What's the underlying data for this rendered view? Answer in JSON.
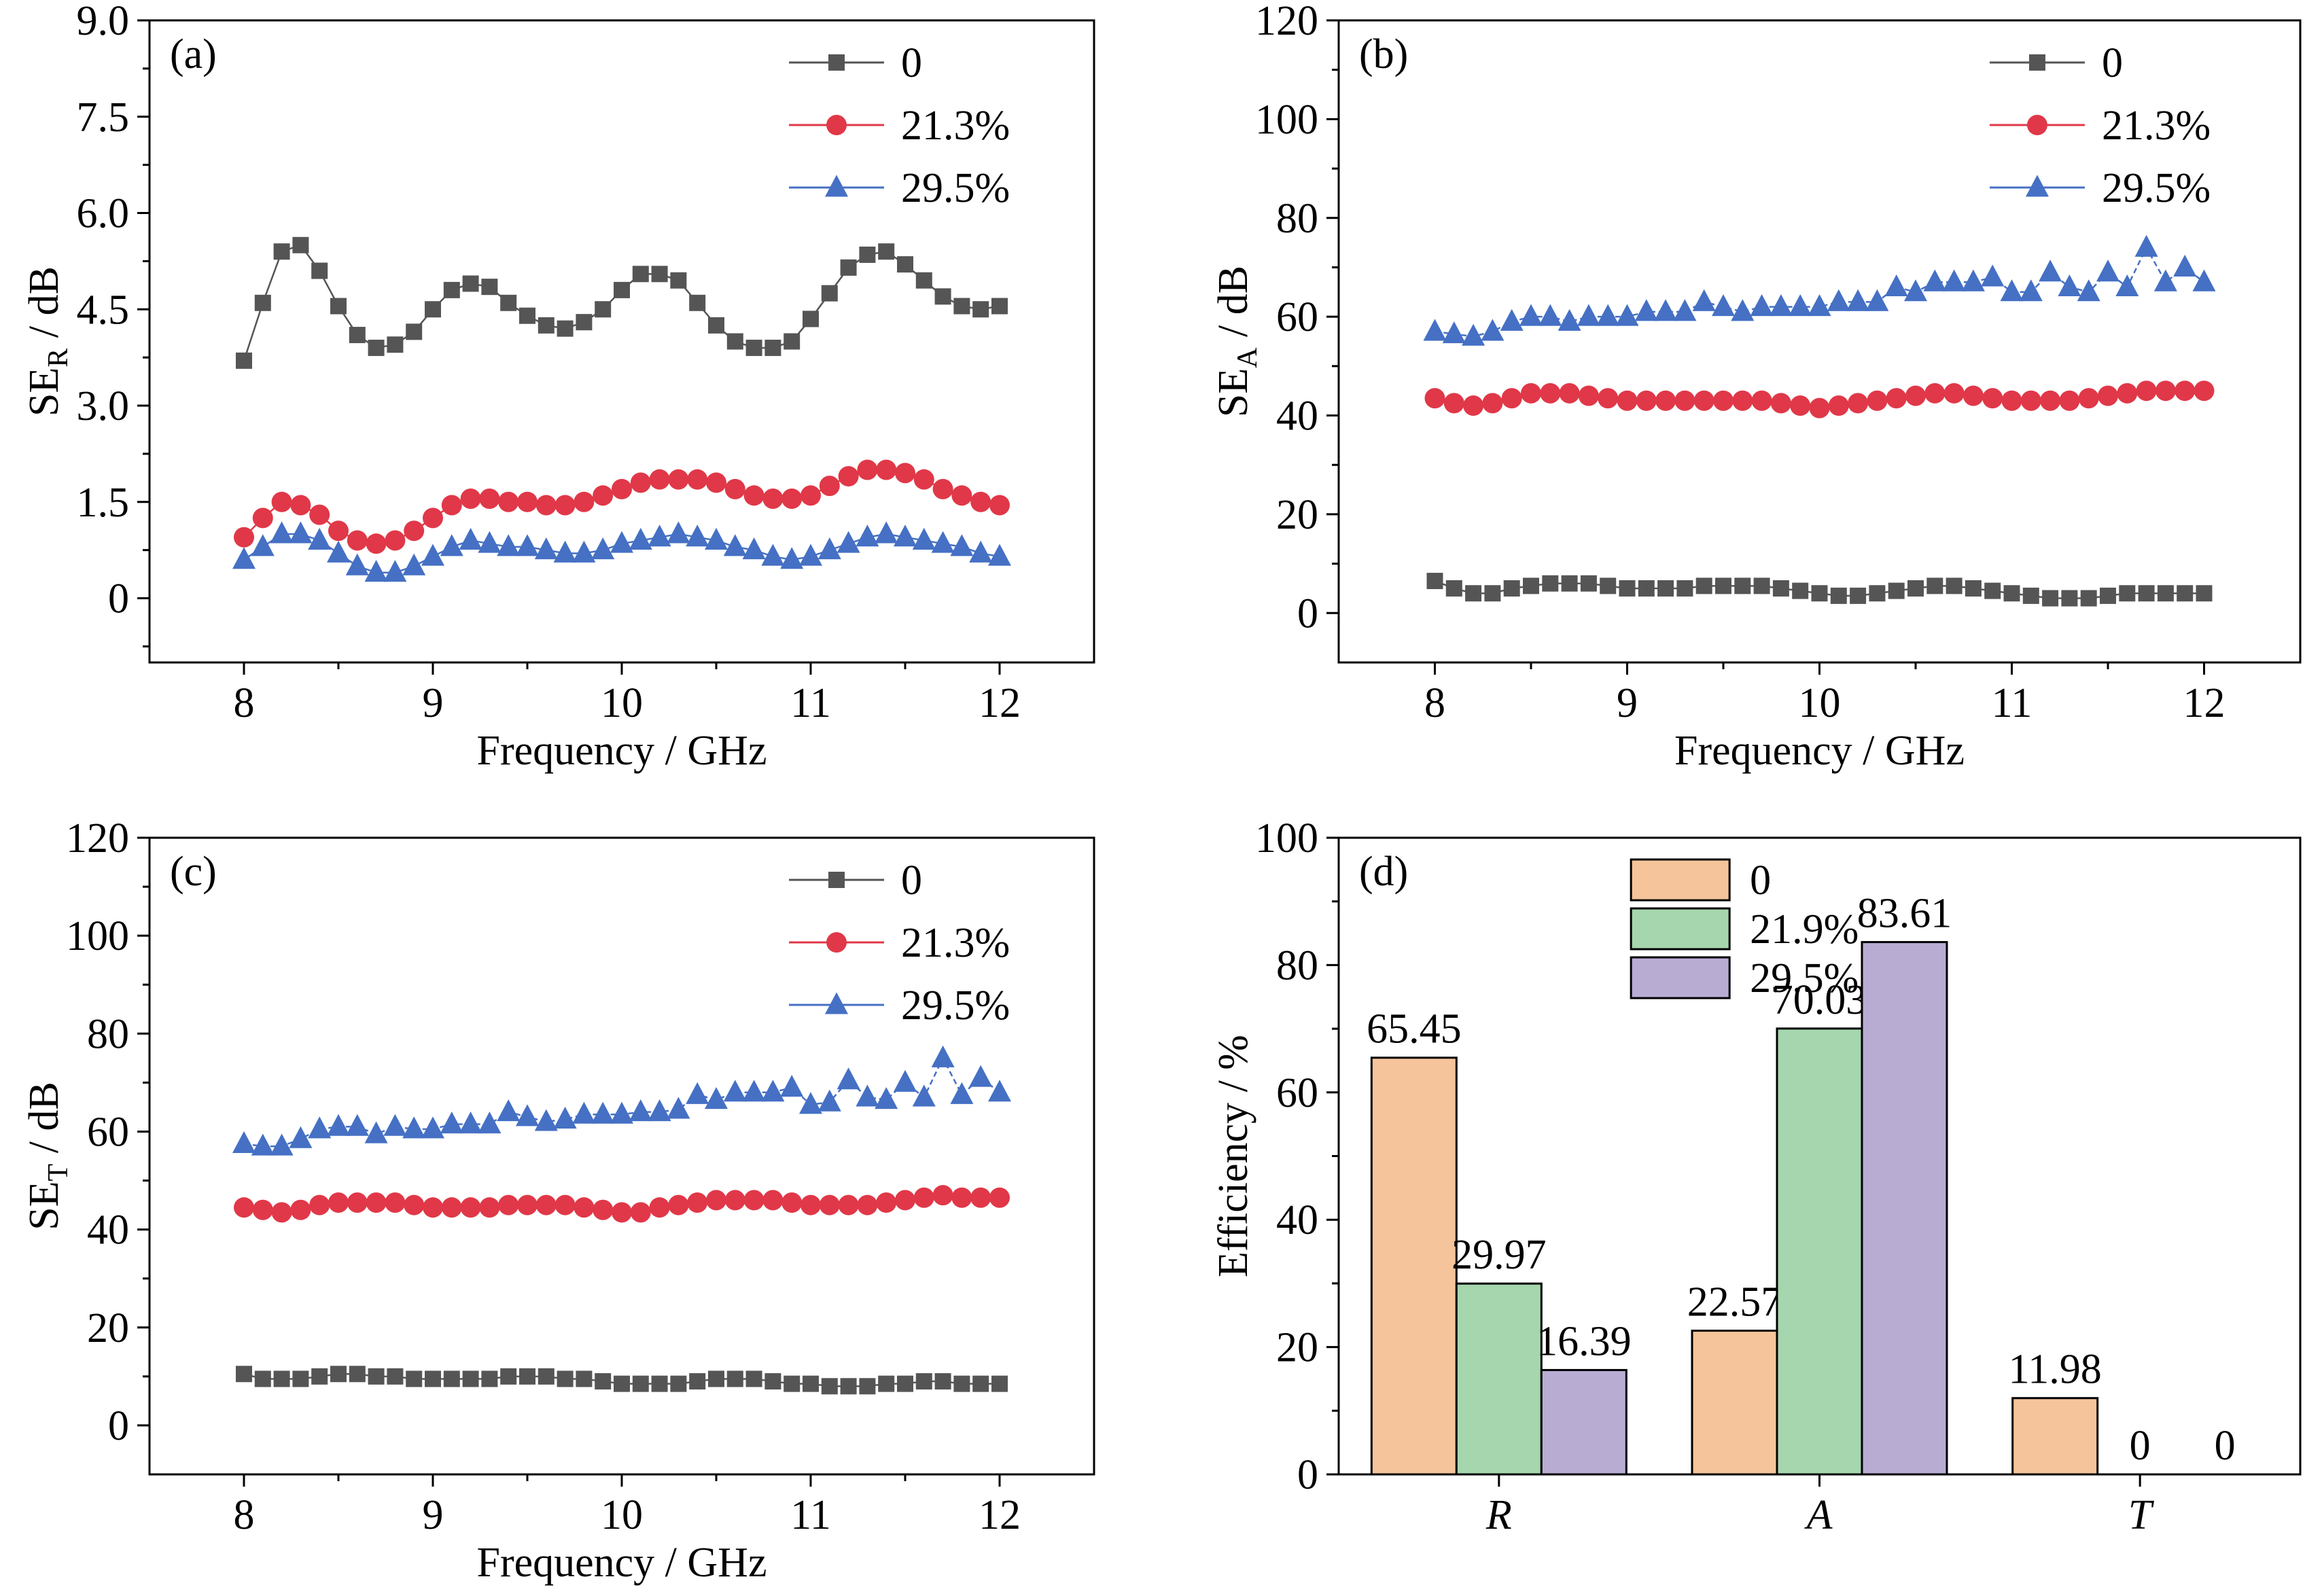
{
  "chart_data": [
    {
      "type": "line",
      "panel_label": "(a)",
      "xlabel": "Frequency / GHz",
      "ylabel_main": "SE",
      "ylabel_sub": "R",
      "ylabel_unit": " / dB",
      "xlim": [
        7.5,
        12.5
      ],
      "ylim": [
        -1.0,
        9.0
      ],
      "xticks": [
        8,
        9,
        10,
        11,
        12
      ],
      "yticks": [
        0,
        1.5,
        3.0,
        4.5,
        6.0,
        7.5,
        9.0
      ],
      "ytick_labels": [
        "0",
        "1.5",
        "3.0",
        "4.5",
        "6.0",
        "7.5",
        "9.0"
      ],
      "legend_position": "top-right",
      "x": [
        8.0,
        8.1,
        8.2,
        8.3,
        8.4,
        8.5,
        8.6,
        8.7,
        8.8,
        8.9,
        9.0,
        9.1,
        9.2,
        9.3,
        9.4,
        9.5,
        9.6,
        9.7,
        9.8,
        9.9,
        10.0,
        10.1,
        10.2,
        10.3,
        10.4,
        10.5,
        10.6,
        10.7,
        10.8,
        10.9,
        11.0,
        11.1,
        11.2,
        11.3,
        11.4,
        11.5,
        11.6,
        11.7,
        11.8,
        11.9,
        12.0
      ],
      "series": [
        {
          "name": "0",
          "color": "#555555",
          "marker": "square",
          "dashed": false,
          "values": [
            3.7,
            4.6,
            5.4,
            5.5,
            5.1,
            4.55,
            4.1,
            3.9,
            3.95,
            4.15,
            4.5,
            4.8,
            4.9,
            4.85,
            4.6,
            4.4,
            4.25,
            4.2,
            4.3,
            4.5,
            4.8,
            5.05,
            5.05,
            4.95,
            4.6,
            4.25,
            4.0,
            3.9,
            3.9,
            4.0,
            4.35,
            4.75,
            5.15,
            5.35,
            5.4,
            5.2,
            4.95,
            4.7,
            4.55,
            4.5,
            4.55
          ]
        },
        {
          "name": "21.3%",
          "color": "#e03848",
          "marker": "circle",
          "dashed": false,
          "values": [
            0.95,
            1.25,
            1.5,
            1.45,
            1.3,
            1.05,
            0.9,
            0.85,
            0.9,
            1.05,
            1.25,
            1.45,
            1.55,
            1.55,
            1.5,
            1.5,
            1.45,
            1.45,
            1.5,
            1.6,
            1.7,
            1.8,
            1.85,
            1.85,
            1.85,
            1.8,
            1.7,
            1.6,
            1.55,
            1.55,
            1.6,
            1.75,
            1.9,
            2.0,
            2.0,
            1.95,
            1.85,
            1.7,
            1.6,
            1.5,
            1.45
          ]
        },
        {
          "name": "29.5%",
          "color": "#4570c4",
          "marker": "triangle",
          "dashed": false,
          "values": [
            0.6,
            0.8,
            1.0,
            1.0,
            0.9,
            0.7,
            0.5,
            0.4,
            0.4,
            0.5,
            0.65,
            0.8,
            0.9,
            0.85,
            0.8,
            0.8,
            0.75,
            0.7,
            0.7,
            0.75,
            0.85,
            0.9,
            0.95,
            1.0,
            0.95,
            0.9,
            0.8,
            0.75,
            0.65,
            0.6,
            0.65,
            0.75,
            0.85,
            0.95,
            1.0,
            0.95,
            0.9,
            0.85,
            0.8,
            0.7,
            0.65
          ]
        }
      ]
    },
    {
      "type": "line",
      "panel_label": "(b)",
      "xlabel": "Frequency / GHz",
      "ylabel_main": "SE",
      "ylabel_sub": "A",
      "ylabel_unit": " / dB",
      "xlim": [
        7.5,
        12.5
      ],
      "ylim": [
        -10,
        120
      ],
      "xticks": [
        8,
        9,
        10,
        11,
        12
      ],
      "yticks": [
        0,
        20,
        40,
        60,
        80,
        100,
        120
      ],
      "ytick_labels": [
        "0",
        "20",
        "40",
        "60",
        "80",
        "100",
        "120"
      ],
      "legend_position": "top-right",
      "x": [
        8.0,
        8.1,
        8.2,
        8.3,
        8.4,
        8.5,
        8.6,
        8.7,
        8.8,
        8.9,
        9.0,
        9.1,
        9.2,
        9.3,
        9.4,
        9.5,
        9.6,
        9.7,
        9.8,
        9.9,
        10.0,
        10.1,
        10.2,
        10.3,
        10.4,
        10.5,
        10.6,
        10.7,
        10.8,
        10.9,
        11.0,
        11.1,
        11.2,
        11.3,
        11.4,
        11.5,
        11.6,
        11.7,
        11.8,
        11.9,
        12.0
      ],
      "series": [
        {
          "name": "0",
          "color": "#555555",
          "marker": "square",
          "dashed": false,
          "values": [
            6.5,
            5,
            4,
            4,
            5,
            5.5,
            6,
            6,
            6,
            5.5,
            5,
            5,
            5,
            5,
            5.5,
            5.5,
            5.5,
            5.5,
            5,
            4.5,
            4,
            3.5,
            3.5,
            4,
            4.5,
            5,
            5.5,
            5.5,
            5,
            4.5,
            4,
            3.5,
            3,
            3,
            3,
            3.5,
            4,
            4,
            4,
            4,
            4
          ]
        },
        {
          "name": "21.3%",
          "color": "#e03848",
          "marker": "circle",
          "dashed": false,
          "values": [
            43.5,
            42.5,
            42,
            42.5,
            43.5,
            44.5,
            44.5,
            44.5,
            44,
            43.5,
            43,
            43,
            43,
            43,
            43,
            43,
            43,
            43,
            42.5,
            42,
            41.5,
            42,
            42.5,
            43,
            43.5,
            44,
            44.5,
            44.5,
            44,
            43.5,
            43,
            43,
            43,
            43,
            43.5,
            44,
            44.5,
            45,
            45,
            45,
            45
          ]
        },
        {
          "name": "29.5%",
          "color": "#4570c4",
          "marker": "triangle",
          "dashed": true,
          "values": [
            57,
            56.5,
            56,
            57,
            59,
            60,
            60,
            59,
            60,
            60,
            60,
            61,
            61,
            61,
            63,
            62,
            61,
            62,
            62,
            62,
            62,
            63,
            63,
            63,
            66,
            65,
            67,
            67,
            67,
            68,
            65,
            65,
            69,
            66,
            65,
            69,
            66,
            74,
            67,
            70,
            67
          ]
        }
      ]
    },
    {
      "type": "line",
      "panel_label": "(c)",
      "xlabel": "Frequency / GHz",
      "ylabel_main": "SE",
      "ylabel_sub": "T",
      "ylabel_unit": " / dB",
      "xlim": [
        7.5,
        12.5
      ],
      "ylim": [
        -10,
        120
      ],
      "xticks": [
        8,
        9,
        10,
        11,
        12
      ],
      "yticks": [
        0,
        20,
        40,
        60,
        80,
        100,
        120
      ],
      "ytick_labels": [
        "0",
        "20",
        "40",
        "60",
        "80",
        "100",
        "120"
      ],
      "legend_position": "top-right",
      "x": [
        8.0,
        8.1,
        8.2,
        8.3,
        8.4,
        8.5,
        8.6,
        8.7,
        8.8,
        8.9,
        9.0,
        9.1,
        9.2,
        9.3,
        9.4,
        9.5,
        9.6,
        9.7,
        9.8,
        9.9,
        10.0,
        10.1,
        10.2,
        10.3,
        10.4,
        10.5,
        10.6,
        10.7,
        10.8,
        10.9,
        11.0,
        11.1,
        11.2,
        11.3,
        11.4,
        11.5,
        11.6,
        11.7,
        11.8,
        11.9,
        12.0
      ],
      "series": [
        {
          "name": "0",
          "color": "#555555",
          "marker": "square",
          "dashed": false,
          "values": [
            10.5,
            9.5,
            9.5,
            9.5,
            10,
            10.5,
            10.5,
            10,
            10,
            9.5,
            9.5,
            9.5,
            9.5,
            9.5,
            10,
            10,
            10,
            9.5,
            9.5,
            9,
            8.5,
            8.5,
            8.5,
            8.5,
            9,
            9.5,
            9.5,
            9.5,
            9,
            8.5,
            8.5,
            8,
            8,
            8,
            8.5,
            8.5,
            9,
            9,
            8.5,
            8.5,
            8.5
          ]
        },
        {
          "name": "21.3%",
          "color": "#e03848",
          "marker": "circle",
          "dashed": false,
          "values": [
            44.5,
            44,
            43.5,
            44,
            45,
            45.5,
            45.5,
            45.5,
            45.5,
            45,
            44.5,
            44.5,
            44.5,
            44.5,
            45,
            45,
            45,
            45,
            44.5,
            44,
            43.5,
            43.5,
            44.5,
            45,
            45.5,
            46,
            46,
            46,
            46,
            45.5,
            45,
            45,
            45,
            45,
            45.5,
            46,
            46.5,
            47,
            46.5,
            46.5,
            46.5
          ]
        },
        {
          "name": "29.5%",
          "color": "#4570c4",
          "marker": "triangle",
          "dashed": true,
          "values": [
            57.5,
            57,
            57,
            58.5,
            60.5,
            61,
            61,
            59.5,
            61,
            60.5,
            60.5,
            61.5,
            61.5,
            61.5,
            64,
            63,
            62,
            62.5,
            63.5,
            63.5,
            63.5,
            64,
            64,
            64.5,
            67.5,
            66.5,
            68,
            68,
            68,
            69,
            65.5,
            66,
            70.5,
            67,
            66.5,
            70,
            67,
            75,
            67.5,
            71,
            68
          ]
        }
      ]
    },
    {
      "type": "bar",
      "panel_label": "(d)",
      "xlabel": "",
      "ylabel": "Efficiency / %",
      "ylim": [
        0,
        100
      ],
      "yticks": [
        0,
        20,
        40,
        60,
        80,
        100
      ],
      "ytick_labels": [
        "0",
        "20",
        "40",
        "60",
        "80",
        "100"
      ],
      "categories": [
        "R",
        "A",
        "T"
      ],
      "legend_position": "top-right",
      "series": [
        {
          "name": "0",
          "color": "#f5c49a",
          "values": [
            65.45,
            22.57,
            11.98
          ],
          "labels": [
            "65.45",
            "22.57",
            "11.98"
          ]
        },
        {
          "name": "21.9%",
          "color": "#a6d6ae",
          "values": [
            29.97,
            70.03,
            0
          ],
          "labels": [
            "29.97",
            "70.03",
            "0"
          ]
        },
        {
          "name": "29.5%",
          "color": "#b9acd3",
          "values": [
            16.39,
            83.61,
            0
          ],
          "labels": [
            "16.39",
            "83.61",
            "0"
          ]
        }
      ]
    }
  ]
}
